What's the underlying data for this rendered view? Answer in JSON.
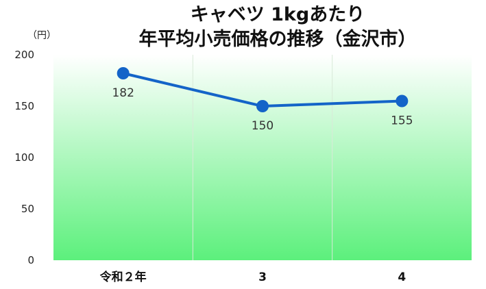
{
  "chart_data": {
    "type": "line",
    "title_lines": [
      "キャベツ 1kgあたり",
      "年平均小売価格の推移（金沢市）"
    ],
    "y_unit": "（円）",
    "categories": [
      "令和２年",
      "3",
      "4"
    ],
    "series": [
      {
        "values": [
          182,
          150,
          155
        ]
      }
    ],
    "ylim": [
      0,
      200
    ],
    "yticks": [
      "0",
      "50",
      "100",
      "150",
      "200"
    ],
    "data_labels": [
      "182",
      "150",
      "155"
    ],
    "grid": "vertical",
    "colors": {
      "line": "#1464c8",
      "plot_top": "#ffffff",
      "plot_bottom": "#5cf07c"
    }
  }
}
